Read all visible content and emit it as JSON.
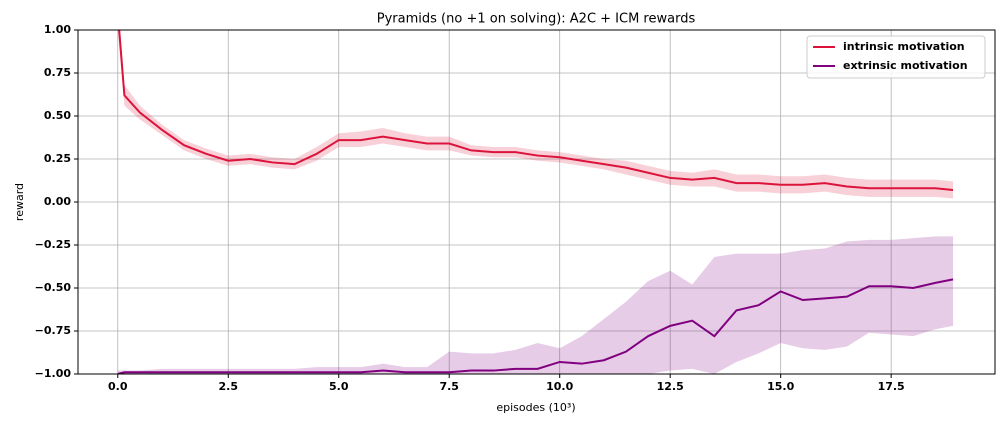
{
  "chart_data": {
    "type": "line",
    "title": "Pyramids (no +1 on solving): A2C + ICM rewards",
    "xlabel": "episodes (10³)",
    "ylabel": "reward",
    "x": [
      0,
      0.15,
      0.5,
      1,
      1.5,
      2,
      2.5,
      3,
      3.5,
      4,
      4.5,
      5,
      5.5,
      6,
      6.5,
      7,
      7.5,
      8,
      8.5,
      9,
      9.5,
      10,
      10.5,
      11,
      11.5,
      12,
      12.5,
      13,
      13.5,
      14,
      14.5,
      15,
      15.5,
      16,
      16.5,
      17,
      17.5,
      18,
      18.5,
      18.9
    ],
    "xlim": [
      -0.9,
      19.85
    ],
    "ylim": [
      -1,
      1
    ],
    "xticks": [
      {
        "value": 0,
        "label": "0.0"
      },
      {
        "value": 2.5,
        "label": "2.5"
      },
      {
        "value": 5,
        "label": "5.0"
      },
      {
        "value": 7.5,
        "label": "7.5"
      },
      {
        "value": 10,
        "label": "10.0"
      },
      {
        "value": 12.5,
        "label": "12.5"
      },
      {
        "value": 15,
        "label": "15.0"
      },
      {
        "value": 17.5,
        "label": "17.5"
      }
    ],
    "yticks": [
      {
        "value": -1,
        "label": "−1.00"
      },
      {
        "value": -0.75,
        "label": "−0.75"
      },
      {
        "value": -0.5,
        "label": "−0.50"
      },
      {
        "value": -0.25,
        "label": "−0.25"
      },
      {
        "value": 0,
        "label": "0.00"
      },
      {
        "value": 0.25,
        "label": "0.25"
      },
      {
        "value": 0.5,
        "label": "0.50"
      },
      {
        "value": 0.75,
        "label": "0.75"
      },
      {
        "value": 1,
        "label": "1.00"
      }
    ],
    "grid": true,
    "legend": "upper right",
    "series": [
      {
        "name": "intrinsic motivation",
        "color": "#dc143c",
        "values": [
          1.1,
          0.62,
          0.52,
          0.42,
          0.33,
          0.28,
          0.24,
          0.25,
          0.23,
          0.22,
          0.28,
          0.36,
          0.36,
          0.38,
          0.36,
          0.34,
          0.34,
          0.3,
          0.29,
          0.29,
          0.27,
          0.26,
          0.24,
          0.22,
          0.2,
          0.17,
          0.14,
          0.13,
          0.14,
          0.11,
          0.11,
          0.1,
          0.1,
          0.11,
          0.09,
          0.08,
          0.08,
          0.08,
          0.08,
          0.07
        ],
        "lower": [
          1.0,
          0.56,
          0.48,
          0.39,
          0.3,
          0.25,
          0.21,
          0.22,
          0.2,
          0.19,
          0.24,
          0.32,
          0.32,
          0.34,
          0.32,
          0.3,
          0.3,
          0.27,
          0.26,
          0.26,
          0.24,
          0.23,
          0.21,
          0.19,
          0.16,
          0.13,
          0.1,
          0.09,
          0.09,
          0.06,
          0.06,
          0.05,
          0.05,
          0.06,
          0.04,
          0.03,
          0.03,
          0.03,
          0.03,
          0.02
        ],
        "upper": [
          1.2,
          0.68,
          0.56,
          0.45,
          0.36,
          0.31,
          0.27,
          0.28,
          0.26,
          0.25,
          0.32,
          0.4,
          0.41,
          0.43,
          0.4,
          0.38,
          0.38,
          0.33,
          0.32,
          0.32,
          0.3,
          0.29,
          0.27,
          0.25,
          0.24,
          0.21,
          0.18,
          0.17,
          0.19,
          0.16,
          0.16,
          0.15,
          0.15,
          0.16,
          0.14,
          0.13,
          0.13,
          0.13,
          0.13,
          0.12
        ]
      },
      {
        "name": "extrinsic motivation",
        "color": "#800080",
        "values": [
          -1.0,
          -0.99,
          -0.99,
          -0.99,
          -0.99,
          -0.99,
          -0.99,
          -0.99,
          -0.99,
          -0.99,
          -0.99,
          -0.99,
          -0.99,
          -0.98,
          -0.99,
          -0.99,
          -0.99,
          -0.98,
          -0.98,
          -0.97,
          -0.97,
          -0.93,
          -0.94,
          -0.92,
          -0.87,
          -0.78,
          -0.72,
          -0.69,
          -0.78,
          -0.63,
          -0.6,
          -0.52,
          -0.57,
          -0.56,
          -0.55,
          -0.49,
          -0.49,
          -0.5,
          -0.47,
          -0.45
        ],
        "lower": [
          -1.0,
          -1.0,
          -1.0,
          -1.0,
          -1.0,
          -1.0,
          -1.0,
          -1.0,
          -1.0,
          -1.0,
          -1.0,
          -1.0,
          -1.0,
          -1.0,
          -1.0,
          -1.0,
          -1.0,
          -1.0,
          -1.0,
          -1.0,
          -1.0,
          -1.0,
          -1.0,
          -1.0,
          -1.0,
          -1.0,
          -0.98,
          -0.97,
          -1.0,
          -0.93,
          -0.88,
          -0.82,
          -0.85,
          -0.86,
          -0.84,
          -0.76,
          -0.77,
          -0.78,
          -0.74,
          -0.72
        ],
        "upper": [
          -0.98,
          -0.98,
          -0.98,
          -0.97,
          -0.97,
          -0.97,
          -0.97,
          -0.97,
          -0.97,
          -0.97,
          -0.96,
          -0.96,
          -0.96,
          -0.94,
          -0.96,
          -0.96,
          -0.87,
          -0.88,
          -0.88,
          -0.86,
          -0.82,
          -0.85,
          -0.78,
          -0.68,
          -0.58,
          -0.46,
          -0.4,
          -0.48,
          -0.32,
          -0.3,
          -0.3,
          -0.3,
          -0.28,
          -0.27,
          -0.23,
          -0.22,
          -0.22,
          -0.21,
          -0.2,
          -0.2
        ]
      }
    ]
  }
}
